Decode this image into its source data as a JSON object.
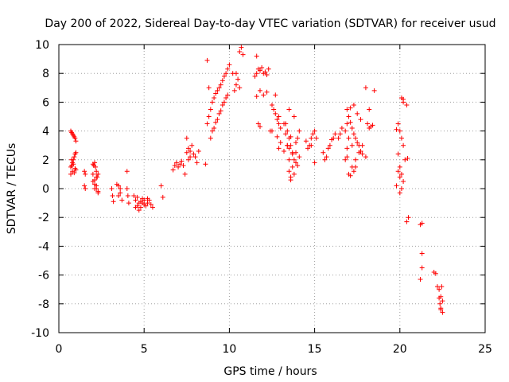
{
  "chart_data": {
    "type": "scatter",
    "title": "Day 200 of 2022, Sidereal Day-to-day VTEC variation (SDTVAR) for receiver usud",
    "xlabel": "GPS time / hours",
    "ylabel": "SDTVAR / TECUs",
    "xlim": [
      0,
      25
    ],
    "ylim": [
      -10,
      10
    ],
    "xticks": [
      "0",
      "5",
      "10",
      "15",
      "20",
      "25"
    ],
    "yticks": [
      "10",
      "8",
      "6",
      "4",
      "2",
      "0",
      "-2",
      "-4",
      "-6",
      "-8",
      "-10"
    ],
    "grid": true,
    "marker": "+",
    "series": [
      {
        "name": "SDTVAR",
        "color": "#ff0000",
        "x": [
          0.7,
          0.75,
          0.8,
          0.85,
          0.9,
          0.95,
          1.0,
          0.7,
          0.75,
          0.8,
          0.85,
          0.9,
          0.95,
          1.0,
          0.7,
          0.8,
          0.9,
          1.0,
          0.75,
          0.85,
          0.95,
          1.5,
          1.55,
          1.5,
          1.55,
          2.0,
          2.05,
          2.1,
          2.15,
          2.2,
          2.25,
          2.3,
          2.0,
          2.1,
          2.2,
          2.3,
          2.0,
          2.1,
          2.2,
          2.3,
          2.1,
          2.2,
          3.1,
          3.15,
          3.2,
          3.5,
          3.6,
          3.7,
          3.5,
          3.6,
          3.4,
          4.0,
          4.05,
          4.1,
          4.0,
          4.4,
          4.5,
          4.6,
          4.7,
          4.8,
          4.9,
          5.0,
          5.1,
          5.2,
          5.3,
          5.4,
          5.5,
          4.6,
          4.8,
          5.0,
          5.2,
          4.5,
          4.7,
          4.9,
          6.0,
          6.1,
          6.7,
          6.8,
          6.9,
          7.0,
          7.1,
          7.2,
          7.3,
          7.4,
          7.5,
          7.6,
          7.7,
          7.8,
          7.9,
          8.0,
          8.1,
          8.2,
          7.5,
          7.6,
          7.7,
          8.6,
          8.7,
          8.8,
          8.9,
          9.0,
          9.1,
          9.2,
          9.3,
          9.4,
          9.5,
          9.6,
          9.7,
          9.8,
          9.9,
          10.0,
          8.7,
          8.9,
          9.1,
          9.3,
          9.5,
          9.7,
          9.9,
          8.8,
          9.0,
          9.2,
          9.4,
          9.6,
          9.8,
          10.3,
          10.4,
          10.5,
          10.6,
          10.7,
          10.8,
          10.2,
          10.4,
          10.6,
          11.5,
          11.6,
          11.7,
          11.8,
          11.9,
          12.0,
          12.1,
          12.2,
          12.3,
          11.6,
          11.8,
          12.0,
          12.2,
          11.6,
          11.7,
          11.8,
          12.4,
          12.5,
          12.6,
          12.7,
          12.8,
          12.9,
          13.0,
          12.5,
          12.7,
          12.9,
          12.8,
          12.9,
          13.0,
          13.2,
          13.3,
          13.4,
          13.5,
          13.6,
          13.7,
          13.8,
          13.9,
          14.0,
          14.1,
          13.3,
          13.5,
          13.7,
          13.9,
          14.1,
          13.4,
          13.6,
          13.8,
          14.0,
          13.2,
          13.5,
          13.8,
          13.3,
          13.5,
          13.6,
          13.4,
          13.7,
          13.9,
          13.5,
          13.6,
          14.5,
          14.6,
          14.7,
          14.8,
          14.9,
          15.0,
          15.1,
          14.8,
          15.0,
          15.5,
          15.6,
          15.7,
          15.8,
          15.9,
          16.0,
          16.1,
          16.2,
          16.4,
          16.5,
          16.6,
          16.8,
          16.9,
          17.0,
          17.1,
          17.2,
          17.3,
          17.4,
          17.5,
          17.6,
          17.7,
          17.8,
          16.9,
          17.1,
          17.3,
          17.5,
          17.7,
          16.9,
          17.0,
          17.2,
          17.4,
          17.6,
          17.8,
          16.8,
          17.0,
          17.2,
          17.4,
          16.9,
          17.1,
          17.3,
          18.0,
          18.1,
          18.2,
          18.3,
          18.4,
          18.5,
          18.0,
          18.2,
          19.8,
          19.9,
          20.0,
          20.1,
          20.2,
          20.3,
          19.9,
          20.0,
          20.1,
          20.2,
          19.8,
          19.9,
          20.0,
          20.1,
          20.0,
          20.1,
          20.2,
          20.2,
          20.4,
          20.45,
          20.5,
          20.4,
          21.2,
          21.3,
          21.3,
          21.3,
          21.2,
          22.0,
          22.1,
          22.2,
          22.3,
          22.4,
          22.5,
          22.35,
          22.4,
          22.5,
          22.3,
          22.45,
          22.4
        ],
        "y": [
          4.0,
          3.9,
          3.8,
          3.7,
          3.6,
          3.5,
          3.3,
          1.5,
          1.6,
          1.8,
          2.0,
          2.2,
          2.4,
          2.5,
          1.0,
          1.2,
          1.1,
          1.3,
          2.0,
          1.7,
          1.4,
          1.2,
          1.0,
          0.2,
          0.0,
          1.7,
          1.6,
          1.8,
          1.5,
          1.2,
          0.8,
          1.0,
          0.5,
          0.3,
          0.0,
          -0.3,
          1.0,
          0.6,
          0.2,
          -0.2,
          0.0,
          0.8,
          0.0,
          -0.5,
          -0.9,
          0.2,
          0.0,
          -0.8,
          -0.5,
          -0.3,
          0.3,
          1.2,
          -0.5,
          -1.0,
          0.0,
          -0.5,
          -0.8,
          -1.2,
          -1.5,
          -1.3,
          -1.0,
          -0.8,
          -1.2,
          -1.0,
          -0.8,
          -1.1,
          -1.3,
          -0.6,
          -0.9,
          -1.1,
          -0.7,
          -1.3,
          -1.0,
          -0.7,
          0.2,
          -0.6,
          1.3,
          1.6,
          1.8,
          1.5,
          1.7,
          1.9,
          1.6,
          1.0,
          2.5,
          2.8,
          2.6,
          3.0,
          2.4,
          2.2,
          1.8,
          2.6,
          3.5,
          2.0,
          2.2,
          1.7,
          4.5,
          5.0,
          5.5,
          6.0,
          6.3,
          6.6,
          6.8,
          7.0,
          7.2,
          7.5,
          7.8,
          8.0,
          8.3,
          8.6,
          8.9,
          3.5,
          4.2,
          4.8,
          5.4,
          6.0,
          6.5,
          7.0,
          4.0,
          4.6,
          5.2,
          5.8,
          6.3,
          6.8,
          8.0,
          7.6,
          9.5,
          9.8,
          9.3,
          8.0,
          7.2,
          7.0,
          7.8,
          9.2,
          8.3,
          8.2,
          8.4,
          8.0,
          8.1,
          7.9,
          8.3,
          8.0,
          6.8,
          6.5,
          6.7,
          6.4,
          4.5,
          4.3,
          4.0,
          5.8,
          5.5,
          5.2,
          4.8,
          4.5,
          4.2,
          4.0,
          6.5,
          5.0,
          3.6,
          2.8,
          3.2,
          4.5,
          4.5,
          4.0,
          3.5,
          3.0,
          2.5,
          2.0,
          3.2,
          3.5,
          4.0,
          3.8,
          2.0,
          1.5,
          2.5,
          2.2,
          3.0,
          0.8,
          1.0,
          1.6,
          2.6,
          5.5,
          5.0,
          4.5,
          1.2,
          0.6,
          3.0,
          2.4,
          1.8,
          2.8,
          3.6,
          3.3,
          2.8,
          3.0,
          3.5,
          3.8,
          4.0,
          3.5,
          3.0,
          1.8,
          2.5,
          2.0,
          2.2,
          2.8,
          3.0,
          3.4,
          3.5,
          3.8,
          3.5,
          3.8,
          4.2,
          4.0,
          5.5,
          5.0,
          4.6,
          4.2,
          3.8,
          3.5,
          3.2,
          3.0,
          2.6,
          2.4,
          2.2,
          5.6,
          5.8,
          5.2,
          4.8,
          4.5,
          1.0,
          1.5,
          2.0,
          2.5,
          3.0,
          2.0,
          3.5,
          3.0,
          1.5,
          2.8,
          0.9,
          1.2,
          2.2,
          4.5,
          4.2,
          4.3,
          4.4,
          6.8,
          7.0,
          5.5,
          4.1,
          4.5,
          4.0,
          3.5,
          3.0,
          2.0,
          2.4,
          1.5,
          1.0,
          0.5,
          0.2,
          1.2,
          0.8,
          0.0,
          -0.3,
          6.3,
          6.2,
          6.0,
          5.8,
          2.1,
          -2.0,
          -2.3,
          -2.5,
          -2.4,
          -4.5,
          -5.5,
          -6.3,
          -5.8,
          -5.9,
          -6.8,
          -7.0,
          -7.5,
          -7.8,
          -8.0,
          -8.3,
          -8.6,
          -7.6,
          -6.8,
          -8.4
        ]
      }
    ]
  }
}
